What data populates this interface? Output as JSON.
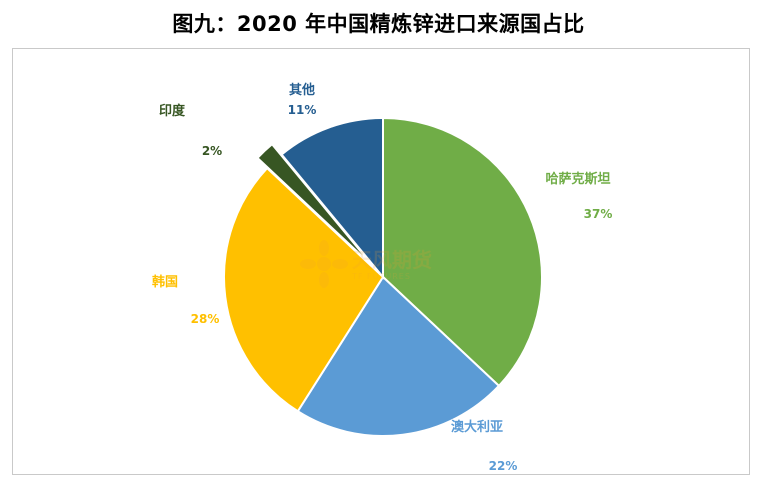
{
  "title": "图九：2020 年中国精炼锌进口来源国占比",
  "watermark": {
    "text": "天风期货",
    "sub": "TF FUTURES"
  },
  "chart_data": {
    "type": "pie",
    "title": "图九：2020 年中国精炼锌进口来源国占比",
    "slices": [
      {
        "name": "哈萨克斯坦",
        "value": 37,
        "label": "37%",
        "color": "#70ad47"
      },
      {
        "name": "澳大利亚",
        "value": 22,
        "label": "22%",
        "color": "#5b9bd5"
      },
      {
        "name": "韩国",
        "value": 28,
        "label": "28%",
        "color": "#ffc000"
      },
      {
        "name": "印度",
        "value": 2,
        "label": "2%",
        "color": "#375623",
        "exploded": true
      },
      {
        "name": "其他",
        "value": 11,
        "label": "11%",
        "color": "#255e91"
      }
    ],
    "start_angle_deg": 0,
    "direction": "clockwise",
    "labels_outside": true
  }
}
